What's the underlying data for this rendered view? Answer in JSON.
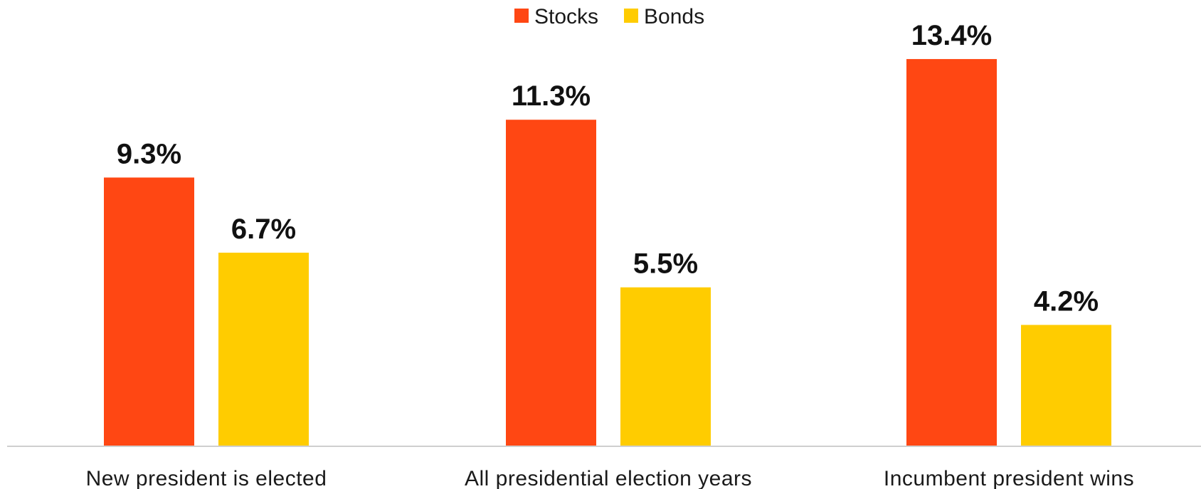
{
  "chart_data": {
    "type": "bar",
    "categories": [
      "New president is elected",
      "All presidential election years",
      "Incumbent president wins"
    ],
    "series": [
      {
        "name": "Stocks",
        "color": "#ff4713",
        "values": [
          9.3,
          11.3,
          13.4
        ],
        "labels": [
          "9.3%",
          "11.3%",
          "13.4%"
        ]
      },
      {
        "name": "Bonds",
        "color": "#ffcc00",
        "values": [
          6.7,
          5.5,
          4.2
        ],
        "labels": [
          "6.7%",
          "5.5%",
          "4.2%"
        ]
      }
    ],
    "ylim": [
      0,
      14.5
    ],
    "grid": false,
    "legend_position": "top-center",
    "baseline_color": "#cfcfcf"
  }
}
